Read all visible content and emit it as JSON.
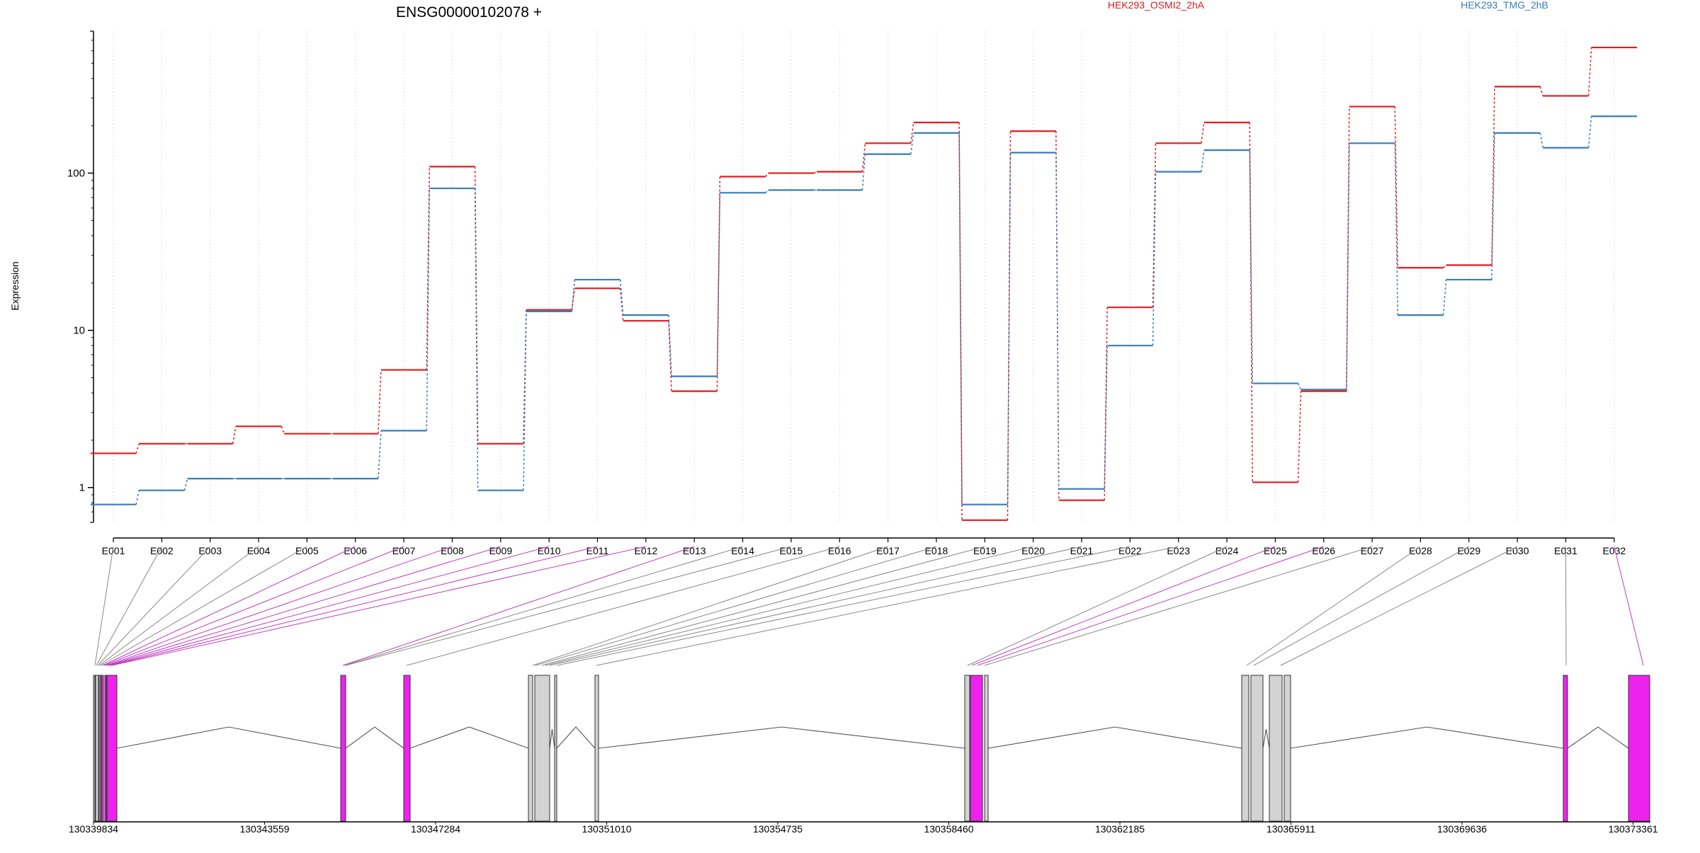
{
  "chart_data": {
    "type": "line",
    "title": "ENSG00000102078 +",
    "ylabel": "Expression",
    "xlabel": "",
    "y_scale": "log",
    "ylim": [
      0.6,
      800
    ],
    "y_ticks": [
      {
        "value": 1,
        "label": "1"
      },
      {
        "value": 10,
        "label": "10"
      },
      {
        "value": 100,
        "label": "100"
      }
    ],
    "grid": "vertical dotted at each exon",
    "legend_position": "top",
    "categories": [
      "E001",
      "E002",
      "E003",
      "E004",
      "E005",
      "E006",
      "E007",
      "E008",
      "E009",
      "E010",
      "E011",
      "E012",
      "E013",
      "E014",
      "E015",
      "E016",
      "E017",
      "E018",
      "E019",
      "E020",
      "E021",
      "E022",
      "E023",
      "E024",
      "E025",
      "E026",
      "E027",
      "E028",
      "E029",
      "E030",
      "E031",
      "E032"
    ],
    "series": [
      {
        "name": "HEK293_OSMI2_2hA",
        "color": "#e41a1c",
        "values": [
          1.65,
          1.9,
          1.9,
          2.45,
          2.2,
          2.2,
          5.6,
          110,
          1.9,
          13.5,
          18.5,
          11.5,
          4.1,
          95,
          100,
          102,
          155,
          210,
          0.62,
          185,
          0.83,
          14,
          155,
          210,
          1.08,
          4.1,
          265,
          25,
          26,
          355,
          310,
          630
        ]
      },
      {
        "name": "HEK293_TMG_2hB",
        "color": "#377eb8",
        "values": [
          0.78,
          0.96,
          1.14,
          1.14,
          1.14,
          1.14,
          2.3,
          80,
          0.96,
          13.2,
          21,
          12.5,
          5.1,
          75,
          78,
          78,
          132,
          180,
          0.78,
          135,
          0.98,
          8,
          102,
          140,
          4.6,
          4.2,
          155,
          12.5,
          21,
          180,
          145,
          230
        ]
      }
    ],
    "gene_model": {
      "coordinate_labels": [
        "130339834",
        "130343559",
        "130347284",
        "130351010",
        "130354735",
        "130358460",
        "130362185",
        "130365911",
        "130369636",
        "130373361"
      ],
      "exon_box_color_default": "#d3d3d3",
      "exon_box_color_highlight": "#ee22ee",
      "highlight_exons": [
        "E006",
        "E007",
        "E008",
        "E009",
        "E010",
        "E011",
        "E012",
        "E013",
        "E025",
        "E026",
        "E032"
      ]
    }
  }
}
